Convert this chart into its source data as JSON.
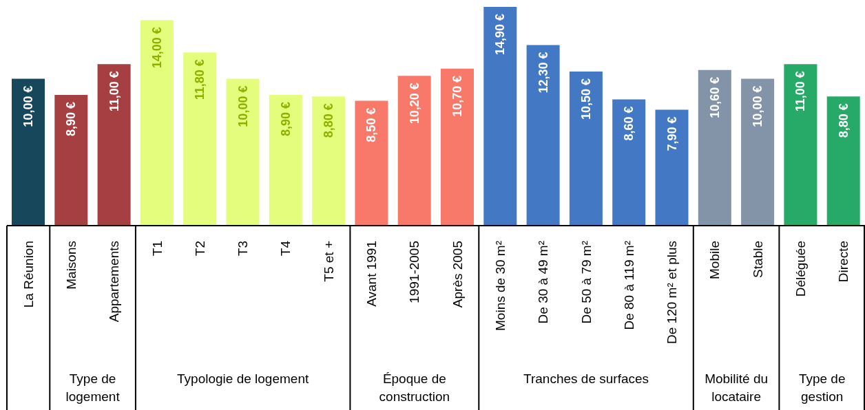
{
  "chart_data": {
    "type": "bar",
    "categories": [
      "La Réunion",
      "Maisons",
      "Appartements",
      "T1",
      "T2",
      "T3",
      "T4",
      "T5 et +",
      "Avant 1991",
      "1991-2005",
      "Après 2005",
      "Moins de 30 m²",
      "De 30 à 49 m²",
      "De 50 à 79 m²",
      "De 80 à 119 m²",
      "De 120 m² et plus",
      "Mobile",
      "Stable",
      "Déléguée",
      "Directe"
    ],
    "values": [
      10.0,
      8.9,
      11.0,
      14.0,
      11.8,
      10.0,
      8.9,
      8.8,
      8.5,
      10.2,
      10.7,
      14.9,
      12.3,
      10.5,
      8.6,
      7.9,
      10.6,
      10.0,
      11.0,
      8.8
    ],
    "value_labels": [
      "10,00 €",
      "8,90 €",
      "11,00 €",
      "14,00 €",
      "11,80 €",
      "10,00 €",
      "8,90 €",
      "8,80 €",
      "8,50 €",
      "10,20 €",
      "10,70 €",
      "14,90 €",
      "12,30 €",
      "10,50 €",
      "8,60 €",
      "7,90 €",
      "10,60 €",
      "10,00 €",
      "11,00 €",
      "8,80 €"
    ],
    "colors": [
      "#17475a",
      "#a63f42",
      "#a63f42",
      "#e4fd7d",
      "#e4fd7d",
      "#e4fd7d",
      "#e4fd7d",
      "#e4fd7d",
      "#f8796a",
      "#f8796a",
      "#f8796a",
      "#4278c4",
      "#4278c4",
      "#4278c4",
      "#4278c4",
      "#4278c4",
      "#8393a8",
      "#8393a8",
      "#27a968",
      "#27a968"
    ],
    "annotations": [
      "Type de logement",
      "Typologie de logement",
      "Époque de construction",
      "Tranches de surfaces",
      "Mobilité du locataire",
      "Type de gestion"
    ],
    "grid": false,
    "legend": false
  }
}
